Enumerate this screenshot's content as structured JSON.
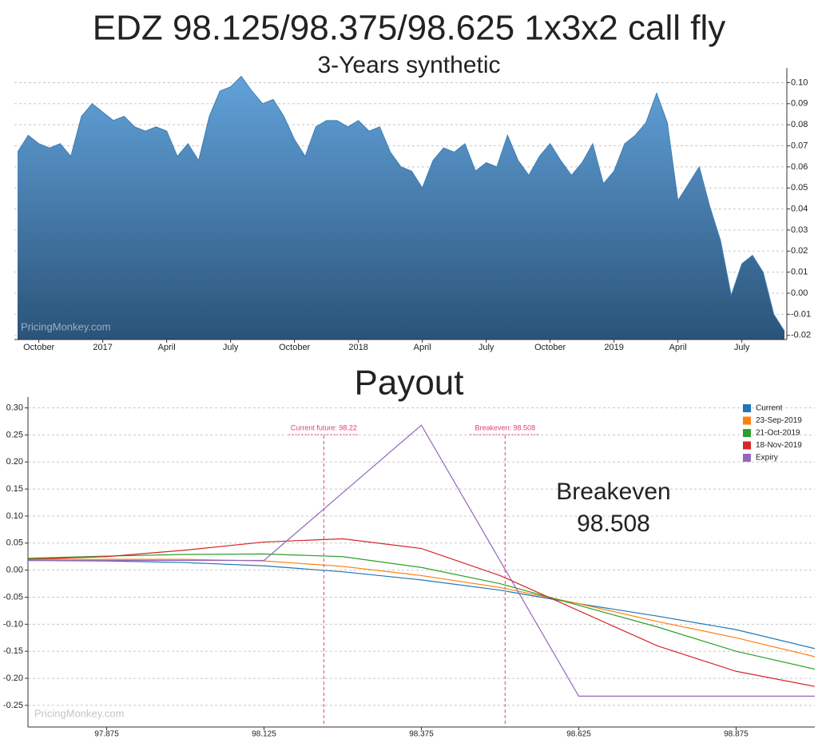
{
  "chart_data": [
    {
      "type": "area",
      "title": "EDZ 98.125/98.375/98.625 1x3x2 call fly",
      "subtitle": "3-Years synthetic",
      "watermark": "PricingMonkey.com",
      "categories": [
        null,
        null,
        "October",
        null,
        null,
        null,
        null,
        null,
        "2017",
        null,
        null,
        null,
        null,
        null,
        "April",
        null,
        null,
        null,
        null,
        null,
        "July",
        null,
        null,
        null,
        null,
        null,
        "October",
        null,
        null,
        null,
        null,
        null,
        "2018",
        null,
        null,
        null,
        null,
        null,
        "April",
        null,
        null,
        null,
        null,
        null,
        "July",
        null,
        null,
        null,
        null,
        null,
        "October",
        null,
        null,
        null,
        null,
        null,
        "2019",
        null,
        null,
        null,
        null,
        null,
        "April",
        null,
        null,
        null,
        null,
        null,
        "July",
        null,
        null,
        null,
        null
      ],
      "values": [
        0.067,
        0.075,
        0.071,
        0.069,
        0.071,
        0.065,
        0.084,
        0.09,
        0.086,
        0.082,
        0.084,
        0.079,
        0.077,
        0.079,
        0.077,
        0.065,
        0.071,
        0.063,
        0.084,
        0.096,
        0.098,
        0.103,
        0.096,
        0.09,
        0.092,
        0.084,
        0.073,
        0.065,
        0.079,
        0.082,
        0.082,
        0.079,
        0.082,
        0.077,
        0.079,
        0.067,
        0.06,
        0.058,
        0.05,
        0.063,
        0.069,
        0.067,
        0.071,
        0.058,
        0.062,
        0.06,
        0.075,
        0.063,
        0.056,
        0.065,
        0.071,
        0.063,
        0.056,
        0.062,
        0.071,
        0.052,
        0.058,
        0.071,
        0.075,
        0.081,
        0.095,
        0.081,
        0.044,
        0.052,
        0.06,
        0.041,
        0.025,
        -0.001,
        0.014,
        0.018,
        0.01,
        -0.01,
        -0.018
      ],
      "color": "#3d7fb5",
      "ylim": [
        -0.022,
        0.107
      ],
      "yticks": [
        -0.02,
        -0.01,
        {
          "value": 0,
          "label": "0.00"
        },
        0.01,
        0.02,
        0.03,
        0.04,
        0.05,
        0.06,
        0.07,
        0.08,
        0.09,
        {
          "value": 0.1,
          "label": "0.10"
        }
      ],
      "grid": true
    },
    {
      "type": "line",
      "title": "Payout",
      "watermark": "PricingMonkey.com",
      "x": [
        97.75,
        97.875,
        98.0,
        98.125,
        98.25,
        98.375,
        98.5,
        98.625,
        98.75,
        98.875,
        99.0
      ],
      "series": [
        {
          "name": "Current",
          "color": "#1f77b4",
          "values": [
            0.018,
            0.017,
            0.014,
            0.008,
            -0.003,
            -0.018,
            -0.037,
            -0.062,
            -0.085,
            -0.11,
            -0.145
          ]
        },
        {
          "name": "23-Sep-2019",
          "color": "#ff7f0e",
          "values": [
            0.02,
            0.02,
            0.02,
            0.017,
            0.007,
            -0.01,
            -0.032,
            -0.062,
            -0.095,
            -0.125,
            -0.16
          ]
        },
        {
          "name": "21-Oct-2019",
          "color": "#2ca02c",
          "values": [
            0.022,
            0.026,
            0.029,
            0.03,
            0.025,
            0.005,
            -0.025,
            -0.065,
            -0.105,
            -0.15,
            -0.183
          ]
        },
        {
          "name": "18-Nov-2019",
          "color": "#d62728",
          "values": [
            0.02,
            0.025,
            0.037,
            0.052,
            0.058,
            0.04,
            -0.01,
            -0.075,
            -0.14,
            -0.187,
            -0.215
          ]
        },
        {
          "name": "Expiry",
          "color": "#9467bd",
          "values": [
            0.018,
            0.018,
            0.018,
            0.018,
            0.143,
            0.268,
            0.0175,
            -0.233,
            -0.233,
            -0.233,
            -0.233
          ]
        }
      ],
      "xlim": [
        97.75,
        99.0
      ],
      "xticks": [
        97.875,
        98.125,
        98.375,
        98.625,
        98.875
      ],
      "ylim": [
        -0.29,
        0.32
      ],
      "yticks": [
        -0.25,
        {
          "value": -0.2,
          "label": "-0.20"
        },
        -0.15,
        {
          "value": -0.1,
          "label": "-0.10"
        },
        -0.05,
        {
          "value": 0,
          "label": "0.00"
        },
        0.05,
        {
          "value": 0.1,
          "label": "0.10"
        },
        0.15,
        {
          "value": 0.2,
          "label": "0.20"
        },
        0.25,
        {
          "value": 0.3,
          "label": "0.30"
        }
      ],
      "grid": true,
      "legend": "top-right",
      "annotations": [
        {
          "x": 98.22,
          "label": "Current future: 98.22",
          "color": "#e0407a"
        },
        {
          "x": 98.508,
          "label": "Breakeven: 98.508",
          "color": "#e0407a"
        }
      ],
      "note": [
        "Breakeven",
        "98.508"
      ]
    }
  ]
}
